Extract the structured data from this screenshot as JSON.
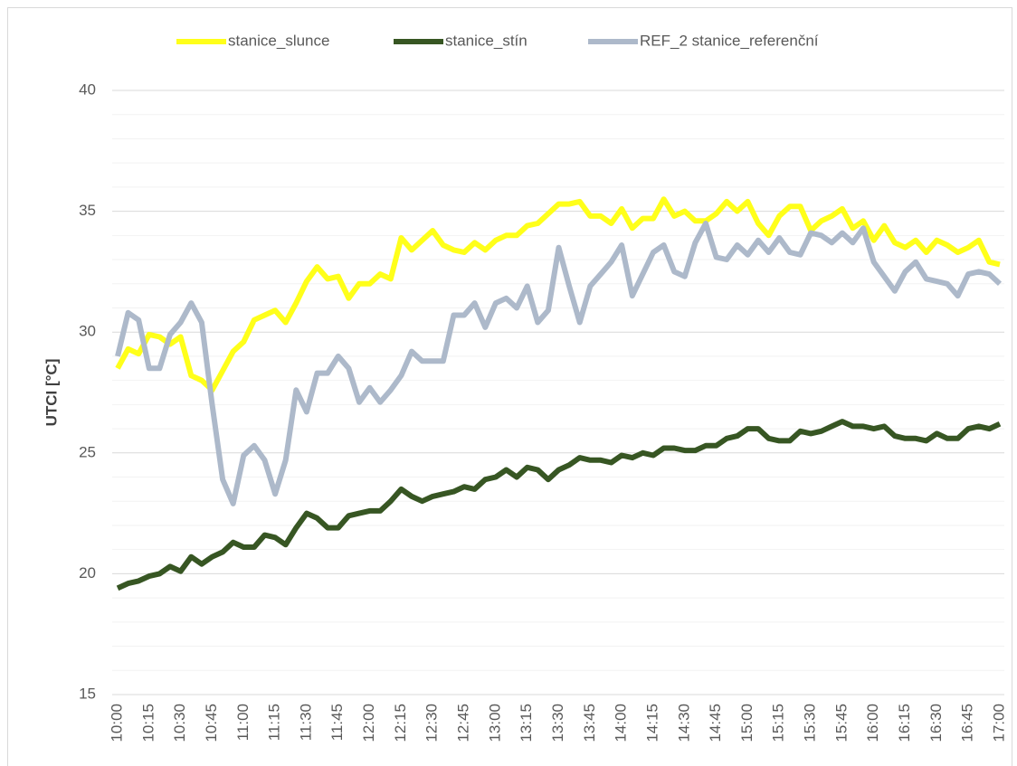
{
  "chart_data": {
    "type": "line",
    "y_label": "UTCI [°C]",
    "categories": [
      "10:00",
      null,
      null,
      "10:15",
      null,
      null,
      "10:30",
      null,
      null,
      "10:45",
      null,
      null,
      "11:00",
      null,
      null,
      "11:15",
      null,
      null,
      "11:30",
      null,
      null,
      "11:45",
      null,
      null,
      "12:00",
      null,
      null,
      "12:15",
      null,
      null,
      "12:30",
      null,
      null,
      "12:45",
      null,
      null,
      "13:00",
      null,
      null,
      "13:15",
      null,
      null,
      "13:30",
      null,
      null,
      "13:45",
      null,
      null,
      "14:00",
      null,
      null,
      "14:15",
      null,
      null,
      "14:30",
      null,
      null,
      "14:45",
      null,
      null,
      "15:00",
      null,
      null,
      "15:15",
      null,
      null,
      "15:30",
      null,
      null,
      "15:45",
      null,
      null,
      "16:00",
      null,
      null,
      "16:15",
      null,
      null,
      "16:30",
      null,
      null,
      "16:45",
      null,
      null,
      "17:00"
    ],
    "series": [
      {
        "name": "stanice_slunce",
        "color": "#ffff1a",
        "values": [
          28.5,
          29.3,
          29.1,
          29.9,
          29.8,
          29.5,
          29.8,
          28.2,
          28.0,
          27.6,
          28.4,
          29.2,
          29.6,
          30.5,
          30.7,
          30.9,
          30.4,
          31.2,
          32.1,
          32.7,
          32.2,
          32.3,
          31.4,
          32.0,
          32.0,
          32.4,
          32.2,
          33.9,
          33.4,
          33.8,
          34.2,
          33.6,
          33.4,
          33.3,
          33.7,
          33.4,
          33.8,
          34.0,
          34.0,
          34.4,
          34.5,
          34.9,
          35.3,
          35.3,
          35.4,
          34.8,
          34.8,
          34.5,
          35.1,
          34.3,
          34.7,
          34.7,
          35.5,
          34.8,
          35.0,
          34.6,
          34.6,
          34.9,
          35.4,
          35.0,
          35.4,
          34.5,
          34.0,
          34.8,
          35.2,
          35.2,
          34.2,
          34.6,
          34.8,
          35.1,
          34.3,
          34.6,
          33.8,
          34.4,
          33.7,
          33.5,
          33.8,
          33.3,
          33.8,
          33.6,
          33.3,
          33.5,
          33.8,
          32.9,
          32.8
        ]
      },
      {
        "name": "stanice_stín",
        "color": "#375623",
        "values": [
          19.4,
          19.6,
          19.7,
          19.9,
          20.0,
          20.3,
          20.1,
          20.7,
          20.4,
          20.7,
          20.9,
          21.3,
          21.1,
          21.1,
          21.6,
          21.5,
          21.2,
          21.9,
          22.5,
          22.3,
          21.9,
          21.9,
          22.4,
          22.5,
          22.6,
          22.6,
          23.0,
          23.5,
          23.2,
          23.0,
          23.2,
          23.3,
          23.4,
          23.6,
          23.5,
          23.9,
          24.0,
          24.3,
          24.0,
          24.4,
          24.3,
          23.9,
          24.3,
          24.5,
          24.8,
          24.7,
          24.7,
          24.6,
          24.9,
          24.8,
          25.0,
          24.9,
          25.2,
          25.2,
          25.1,
          25.1,
          25.3,
          25.3,
          25.6,
          25.7,
          26.0,
          26.0,
          25.6,
          25.5,
          25.5,
          25.9,
          25.8,
          25.9,
          26.1,
          26.3,
          26.1,
          26.1,
          26.0,
          26.1,
          25.7,
          25.6,
          25.6,
          25.5,
          25.8,
          25.6,
          25.6,
          26.0,
          26.1,
          26.0,
          26.2
        ]
      },
      {
        "name": "REF_2 stanice_referenční",
        "color": "#adb9ca",
        "values": [
          29.0,
          30.8,
          30.5,
          28.5,
          28.5,
          29.9,
          30.4,
          31.2,
          30.4,
          27.0,
          23.9,
          22.9,
          24.9,
          25.3,
          24.7,
          23.3,
          24.7,
          27.6,
          26.7,
          28.3,
          28.3,
          29.0,
          28.5,
          27.1,
          27.7,
          27.1,
          27.6,
          28.2,
          29.2,
          28.8,
          28.8,
          28.8,
          30.7,
          30.7,
          31.2,
          30.2,
          31.2,
          31.4,
          31.0,
          31.9,
          30.4,
          30.9,
          33.5,
          31.9,
          30.4,
          31.9,
          32.4,
          32.9,
          33.6,
          31.5,
          32.4,
          33.3,
          33.6,
          32.5,
          32.3,
          33.7,
          34.5,
          33.1,
          33.0,
          33.6,
          33.2,
          33.8,
          33.3,
          33.9,
          33.3,
          33.2,
          34.1,
          34.0,
          33.7,
          34.1,
          33.7,
          34.3,
          32.9,
          32.3,
          31.7,
          32.5,
          32.9,
          32.2,
          32.1,
          32.0,
          31.5,
          32.4,
          32.5,
          32.4,
          32.0
        ]
      }
    ],
    "ylim": [
      15,
      40
    ],
    "yticks": [
      15,
      20,
      25,
      30,
      35,
      40
    ],
    "minor_yticks": [
      16,
      17,
      18,
      19,
      21,
      22,
      23,
      24,
      26,
      27,
      28,
      29,
      31,
      32,
      33,
      34,
      36,
      37,
      38,
      39
    ],
    "grid": true,
    "legend": "top"
  }
}
